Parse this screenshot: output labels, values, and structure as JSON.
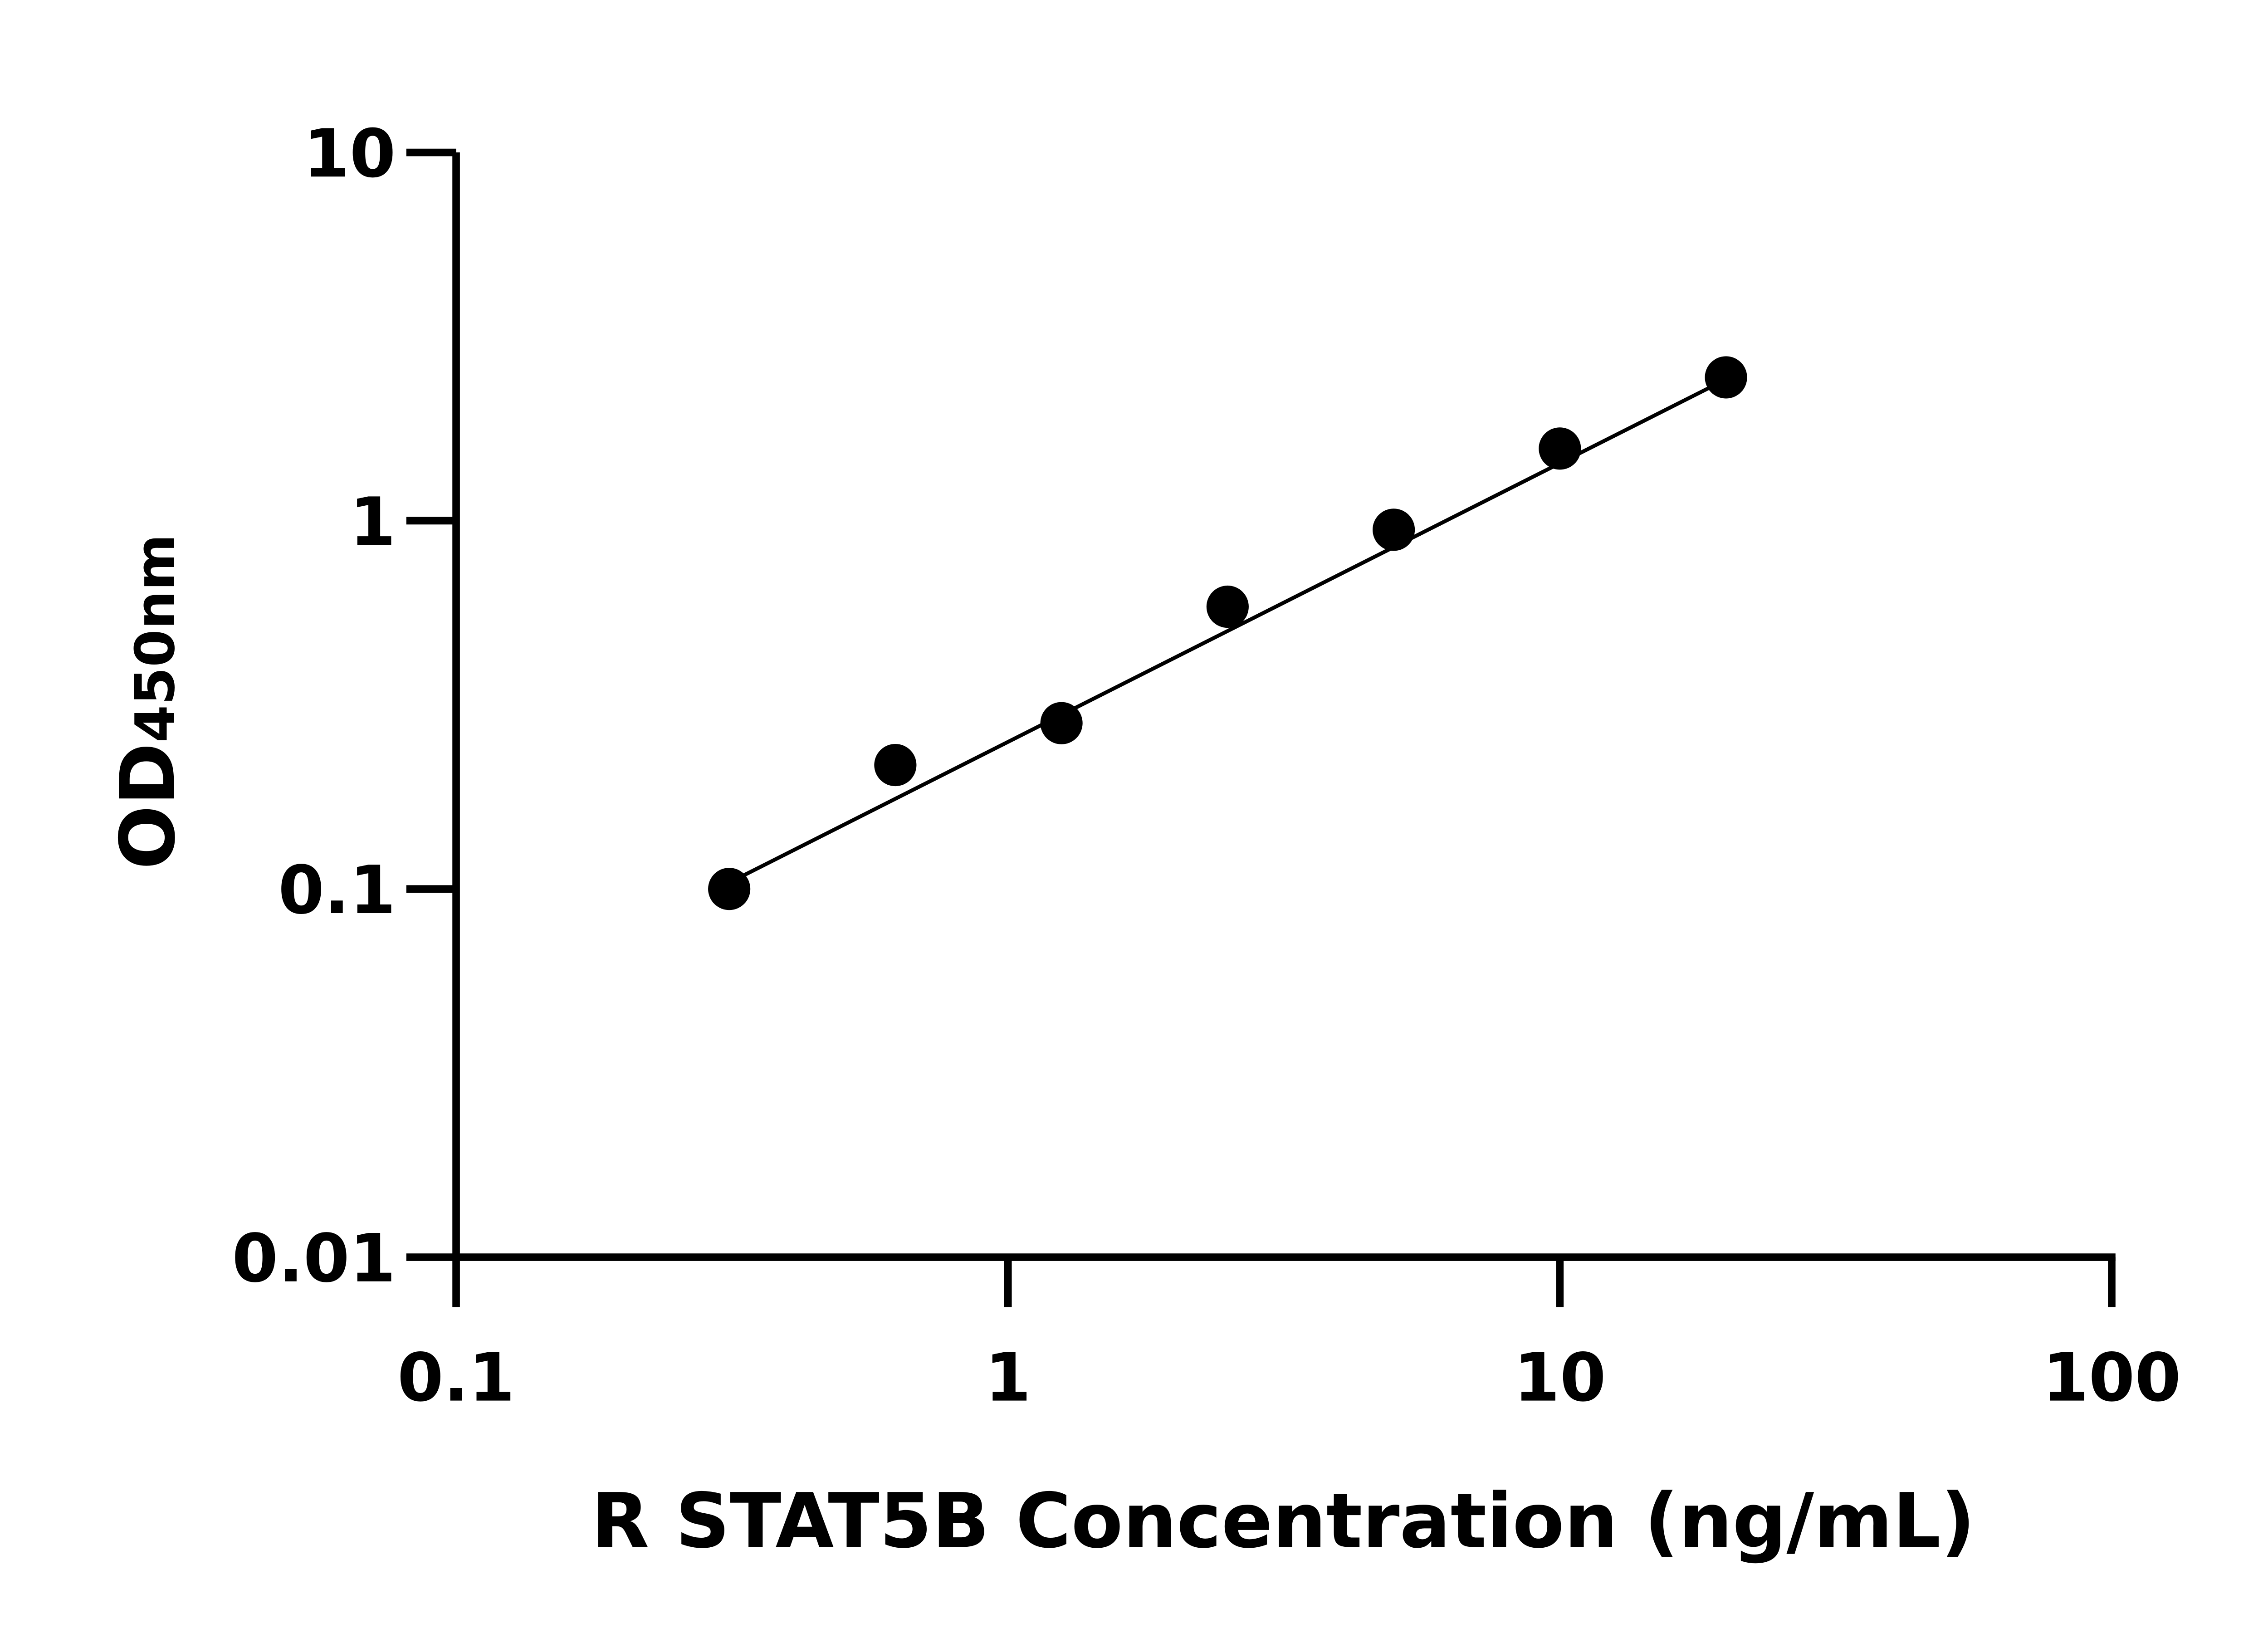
{
  "chart_data": {
    "type": "scatter",
    "title": "",
    "xlabel": "R STAT5B Concentration (ng/mL)",
    "ylabel_main": "OD",
    "ylabel_sub": "450nm",
    "xscale": "log",
    "yscale": "log",
    "xlim": [
      0.1,
      100
    ],
    "ylim": [
      0.01,
      10
    ],
    "xticks": [
      "0.1",
      "1",
      "10",
      "100"
    ],
    "yticks": [
      "0.01",
      "0.1",
      "1",
      "10"
    ],
    "grid": false,
    "legend": "none",
    "series": [
      {
        "x": [
          0.3125,
          0.625,
          1.25,
          2.5,
          5,
          10,
          20
        ],
        "y": [
          0.1,
          0.217,
          0.282,
          0.584,
          0.945,
          1.57,
          2.45
        ]
      }
    ],
    "fit_line": {
      "x": [
        0.3125,
        20
      ],
      "y": [
        0.104,
        2.42
      ]
    },
    "colors": {
      "marker": "#000000",
      "line": "#000000",
      "axis": "#000000"
    }
  }
}
